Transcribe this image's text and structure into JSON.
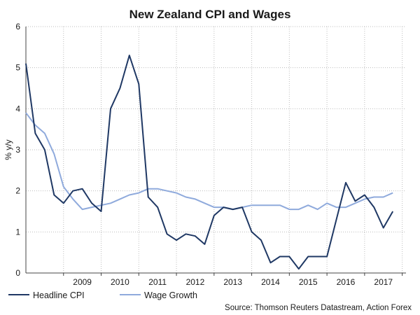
{
  "chart_data": {
    "type": "line",
    "title": "New Zealand CPI and Wages",
    "ylabel": "% y/y",
    "xlabel": "",
    "ylim": [
      0,
      6
    ],
    "yticks": [
      0,
      1,
      2,
      3,
      4,
      5,
      6
    ],
    "xlim": [
      2008.0,
      2018.1
    ],
    "xticks": [
      {
        "label": "2009",
        "x": 2009.0
      },
      {
        "label": "2010",
        "x": 2010.0
      },
      {
        "label": "2011",
        "x": 2011.0
      },
      {
        "label": "2012",
        "x": 2012.0
      },
      {
        "label": "2013",
        "x": 2013.0
      },
      {
        "label": "2014",
        "x": 2014.0
      },
      {
        "label": "2015",
        "x": 2015.0
      },
      {
        "label": "2016",
        "x": 2016.0
      },
      {
        "label": "2017",
        "x": 2017.0
      }
    ],
    "grid": true,
    "legend_position": "bottom-left",
    "series": [
      {
        "name": "Headline CPI",
        "color": "#1f3864",
        "x": [
          2008.0,
          2008.25,
          2008.5,
          2008.75,
          2009.0,
          2009.25,
          2009.5,
          2009.75,
          2010.0,
          2010.25,
          2010.5,
          2010.75,
          2011.0,
          2011.25,
          2011.5,
          2011.75,
          2012.0,
          2012.25,
          2012.5,
          2012.75,
          2013.0,
          2013.25,
          2013.5,
          2013.75,
          2014.0,
          2014.25,
          2014.5,
          2014.75,
          2015.0,
          2015.25,
          2015.5,
          2015.75,
          2016.0,
          2016.25,
          2016.5,
          2016.75,
          2017.0,
          2017.25,
          2017.5,
          2017.75
        ],
        "values": [
          5.1,
          3.4,
          3.0,
          1.9,
          1.7,
          2.0,
          2.05,
          1.7,
          1.5,
          4.0,
          4.5,
          5.3,
          4.6,
          1.85,
          1.6,
          0.95,
          0.8,
          0.95,
          0.9,
          0.7,
          1.4,
          1.6,
          1.55,
          1.6,
          1.0,
          0.8,
          0.25,
          0.4,
          0.4,
          0.1,
          0.4,
          0.4,
          0.4,
          1.3,
          2.2,
          1.75,
          1.9,
          1.6,
          1.1,
          1.5
        ]
      },
      {
        "name": "Wage Growth",
        "color": "#8faadc",
        "x": [
          2008.0,
          2008.25,
          2008.5,
          2008.75,
          2009.0,
          2009.25,
          2009.5,
          2009.75,
          2010.0,
          2010.25,
          2010.5,
          2010.75,
          2011.0,
          2011.25,
          2011.5,
          2011.75,
          2012.0,
          2012.25,
          2012.5,
          2012.75,
          2013.0,
          2013.25,
          2013.5,
          2013.75,
          2014.0,
          2014.25,
          2014.5,
          2014.75,
          2015.0,
          2015.25,
          2015.5,
          2015.75,
          2016.0,
          2016.25,
          2016.5,
          2016.75,
          2017.0,
          2017.25,
          2017.5,
          2017.75
        ],
        "values": [
          3.9,
          3.6,
          3.4,
          2.9,
          2.1,
          1.8,
          1.55,
          1.6,
          1.65,
          1.7,
          1.8,
          1.9,
          1.95,
          2.05,
          2.05,
          2.0,
          1.95,
          1.85,
          1.8,
          1.7,
          1.6,
          1.6,
          1.55,
          1.6,
          1.65,
          1.65,
          1.65,
          1.65,
          1.55,
          1.55,
          1.65,
          1.55,
          1.7,
          1.6,
          1.6,
          1.7,
          1.8,
          1.85,
          1.85,
          1.95
        ]
      }
    ],
    "source": "Source: Thomson Reuters Datastream, Action Forex"
  }
}
